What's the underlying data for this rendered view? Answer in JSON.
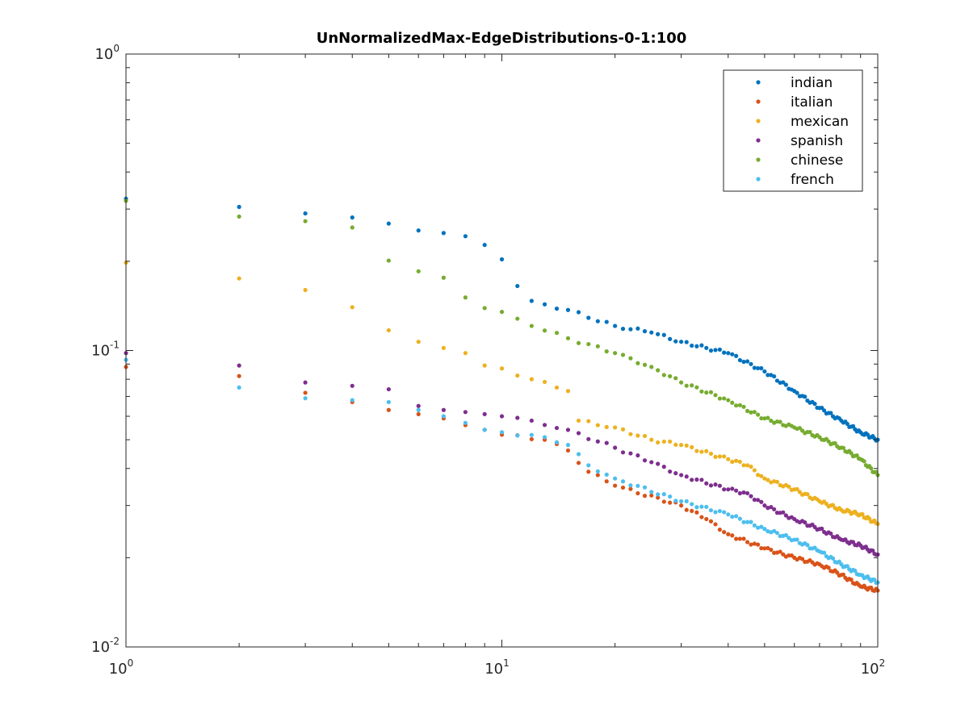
{
  "chart_data": {
    "type": "scatter",
    "title": "UnNormalizedMax-EdgeDistributions-0-1:100",
    "xlabel": "",
    "ylabel": "",
    "xscale": "log",
    "yscale": "log",
    "xlim": [
      1,
      100
    ],
    "ylim": [
      0.01,
      1
    ],
    "grid": false,
    "legend_position": "top-right",
    "x_ticks": [
      {
        "value": 1,
        "base": "10",
        "exp": "0"
      },
      {
        "value": 10,
        "base": "10",
        "exp": "1"
      },
      {
        "value": 100,
        "base": "10",
        "exp": "2"
      }
    ],
    "y_ticks": [
      {
        "value": 0.01,
        "base": "10",
        "exp": "-2"
      },
      {
        "value": 0.1,
        "base": "10",
        "exp": "-1"
      },
      {
        "value": 1,
        "base": "10",
        "exp": "0"
      }
    ],
    "series": [
      {
        "name": "indian",
        "color": "#0072bd",
        "anchors": [
          [
            1,
            0.325
          ],
          [
            2,
            0.305
          ],
          [
            3,
            0.29
          ],
          [
            4,
            0.281
          ],
          [
            5,
            0.268
          ],
          [
            6,
            0.254
          ],
          [
            7,
            0.249
          ],
          [
            8,
            0.243
          ],
          [
            9,
            0.227
          ],
          [
            10,
            0.203
          ],
          [
            11,
            0.165
          ],
          [
            12,
            0.147
          ],
          [
            15,
            0.137
          ],
          [
            20,
            0.121
          ],
          [
            25,
            0.115
          ],
          [
            30,
            0.107
          ],
          [
            35,
            0.102
          ],
          [
            40,
            0.098
          ],
          [
            50,
            0.085
          ],
          [
            60,
            0.073
          ],
          [
            70,
            0.064
          ],
          [
            80,
            0.058
          ],
          [
            90,
            0.053
          ],
          [
            100,
            0.05
          ]
        ]
      },
      {
        "name": "italian",
        "color": "#d95319",
        "anchors": [
          [
            1,
            0.088
          ],
          [
            2,
            0.082
          ],
          [
            3,
            0.072
          ],
          [
            4,
            0.067
          ],
          [
            5,
            0.063
          ],
          [
            6,
            0.061
          ],
          [
            7,
            0.059
          ],
          [
            8,
            0.056
          ],
          [
            9,
            0.054
          ],
          [
            10,
            0.052
          ],
          [
            13,
            0.05
          ],
          [
            15,
            0.046
          ],
          [
            17,
            0.039
          ],
          [
            20,
            0.035
          ],
          [
            30,
            0.03
          ],
          [
            35,
            0.027
          ],
          [
            40,
            0.024
          ],
          [
            50,
            0.0215
          ],
          [
            60,
            0.02
          ],
          [
            70,
            0.019
          ],
          [
            80,
            0.0175
          ],
          [
            90,
            0.016
          ],
          [
            100,
            0.0155
          ]
        ]
      },
      {
        "name": "mexican",
        "color": "#edb120",
        "anchors": [
          [
            1,
            0.198
          ],
          [
            2,
            0.175
          ],
          [
            3,
            0.16
          ],
          [
            4,
            0.14
          ],
          [
            5,
            0.117
          ],
          [
            6,
            0.107
          ],
          [
            7,
            0.102
          ],
          [
            8,
            0.098
          ],
          [
            9,
            0.089
          ],
          [
            10,
            0.087
          ],
          [
            12,
            0.08
          ],
          [
            15,
            0.073
          ],
          [
            16,
            0.058
          ],
          [
            20,
            0.055
          ],
          [
            25,
            0.05
          ],
          [
            30,
            0.048
          ],
          [
            40,
            0.043
          ],
          [
            45,
            0.041
          ],
          [
            50,
            0.037
          ],
          [
            60,
            0.034
          ],
          [
            70,
            0.031
          ],
          [
            80,
            0.029
          ],
          [
            90,
            0.028
          ],
          [
            100,
            0.026
          ]
        ]
      },
      {
        "name": "spanish",
        "color": "#7e2f8e",
        "anchors": [
          [
            1,
            0.098
          ],
          [
            2,
            0.089
          ],
          [
            3,
            0.078
          ],
          [
            4,
            0.076
          ],
          [
            5,
            0.074
          ],
          [
            6,
            0.065
          ],
          [
            7,
            0.063
          ],
          [
            8,
            0.062
          ],
          [
            9,
            0.061
          ],
          [
            10,
            0.06
          ],
          [
            12,
            0.058
          ],
          [
            15,
            0.054
          ],
          [
            20,
            0.047
          ],
          [
            25,
            0.042
          ],
          [
            30,
            0.038
          ],
          [
            40,
            0.034
          ],
          [
            45,
            0.033
          ],
          [
            50,
            0.03
          ],
          [
            60,
            0.027
          ],
          [
            70,
            0.025
          ],
          [
            80,
            0.023
          ],
          [
            90,
            0.022
          ],
          [
            100,
            0.0205
          ]
        ]
      },
      {
        "name": "chinese",
        "color": "#77ac30",
        "anchors": [
          [
            1,
            0.32
          ],
          [
            2,
            0.283
          ],
          [
            3,
            0.273
          ],
          [
            4,
            0.26
          ],
          [
            5,
            0.201
          ],
          [
            6,
            0.185
          ],
          [
            7,
            0.176
          ],
          [
            8,
            0.151
          ],
          [
            9,
            0.139
          ],
          [
            10,
            0.135
          ],
          [
            12,
            0.121
          ],
          [
            15,
            0.11
          ],
          [
            20,
            0.098
          ],
          [
            25,
            0.088
          ],
          [
            30,
            0.078
          ],
          [
            40,
            0.068
          ],
          [
            50,
            0.059
          ],
          [
            60,
            0.055
          ],
          [
            70,
            0.051
          ],
          [
            80,
            0.047
          ],
          [
            90,
            0.043
          ],
          [
            100,
            0.038
          ]
        ]
      },
      {
        "name": "french",
        "color": "#4dbeee",
        "anchors": [
          [
            1,
            0.093
          ],
          [
            2,
            0.075
          ],
          [
            3,
            0.069
          ],
          [
            4,
            0.068
          ],
          [
            5,
            0.067
          ],
          [
            6,
            0.063
          ],
          [
            7,
            0.06
          ],
          [
            8,
            0.057
          ],
          [
            9,
            0.054
          ],
          [
            10,
            0.053
          ],
          [
            13,
            0.051
          ],
          [
            15,
            0.048
          ],
          [
            17,
            0.041
          ],
          [
            20,
            0.037
          ],
          [
            30,
            0.031
          ],
          [
            40,
            0.028
          ],
          [
            50,
            0.025
          ],
          [
            60,
            0.023
          ],
          [
            70,
            0.021
          ],
          [
            80,
            0.019
          ],
          [
            90,
            0.0175
          ],
          [
            100,
            0.0165
          ]
        ]
      }
    ]
  }
}
